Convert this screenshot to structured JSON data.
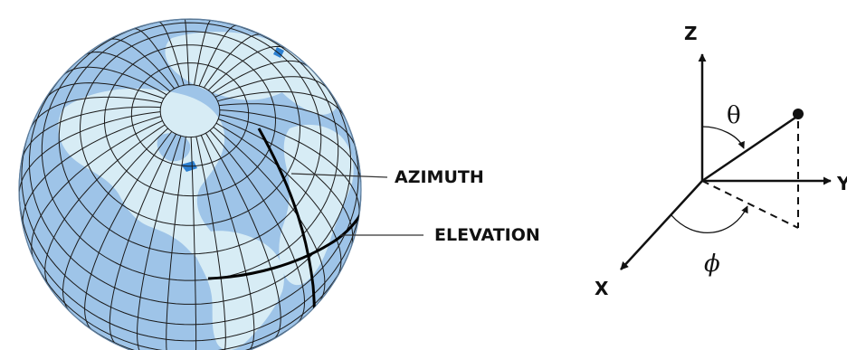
{
  "globe": {
    "azimuth_label": "AZIMUTH",
    "elevation_label": "ELEVATION",
    "ocean_color": "#9ec4e8",
    "land_color": "#d7ecf5",
    "grid_color": "#1a1a1a"
  },
  "axes": {
    "z_label": "Z",
    "y_label": "Y",
    "x_label": "X",
    "theta_symbol": "θ",
    "phi_symbol": "ϕ"
  }
}
